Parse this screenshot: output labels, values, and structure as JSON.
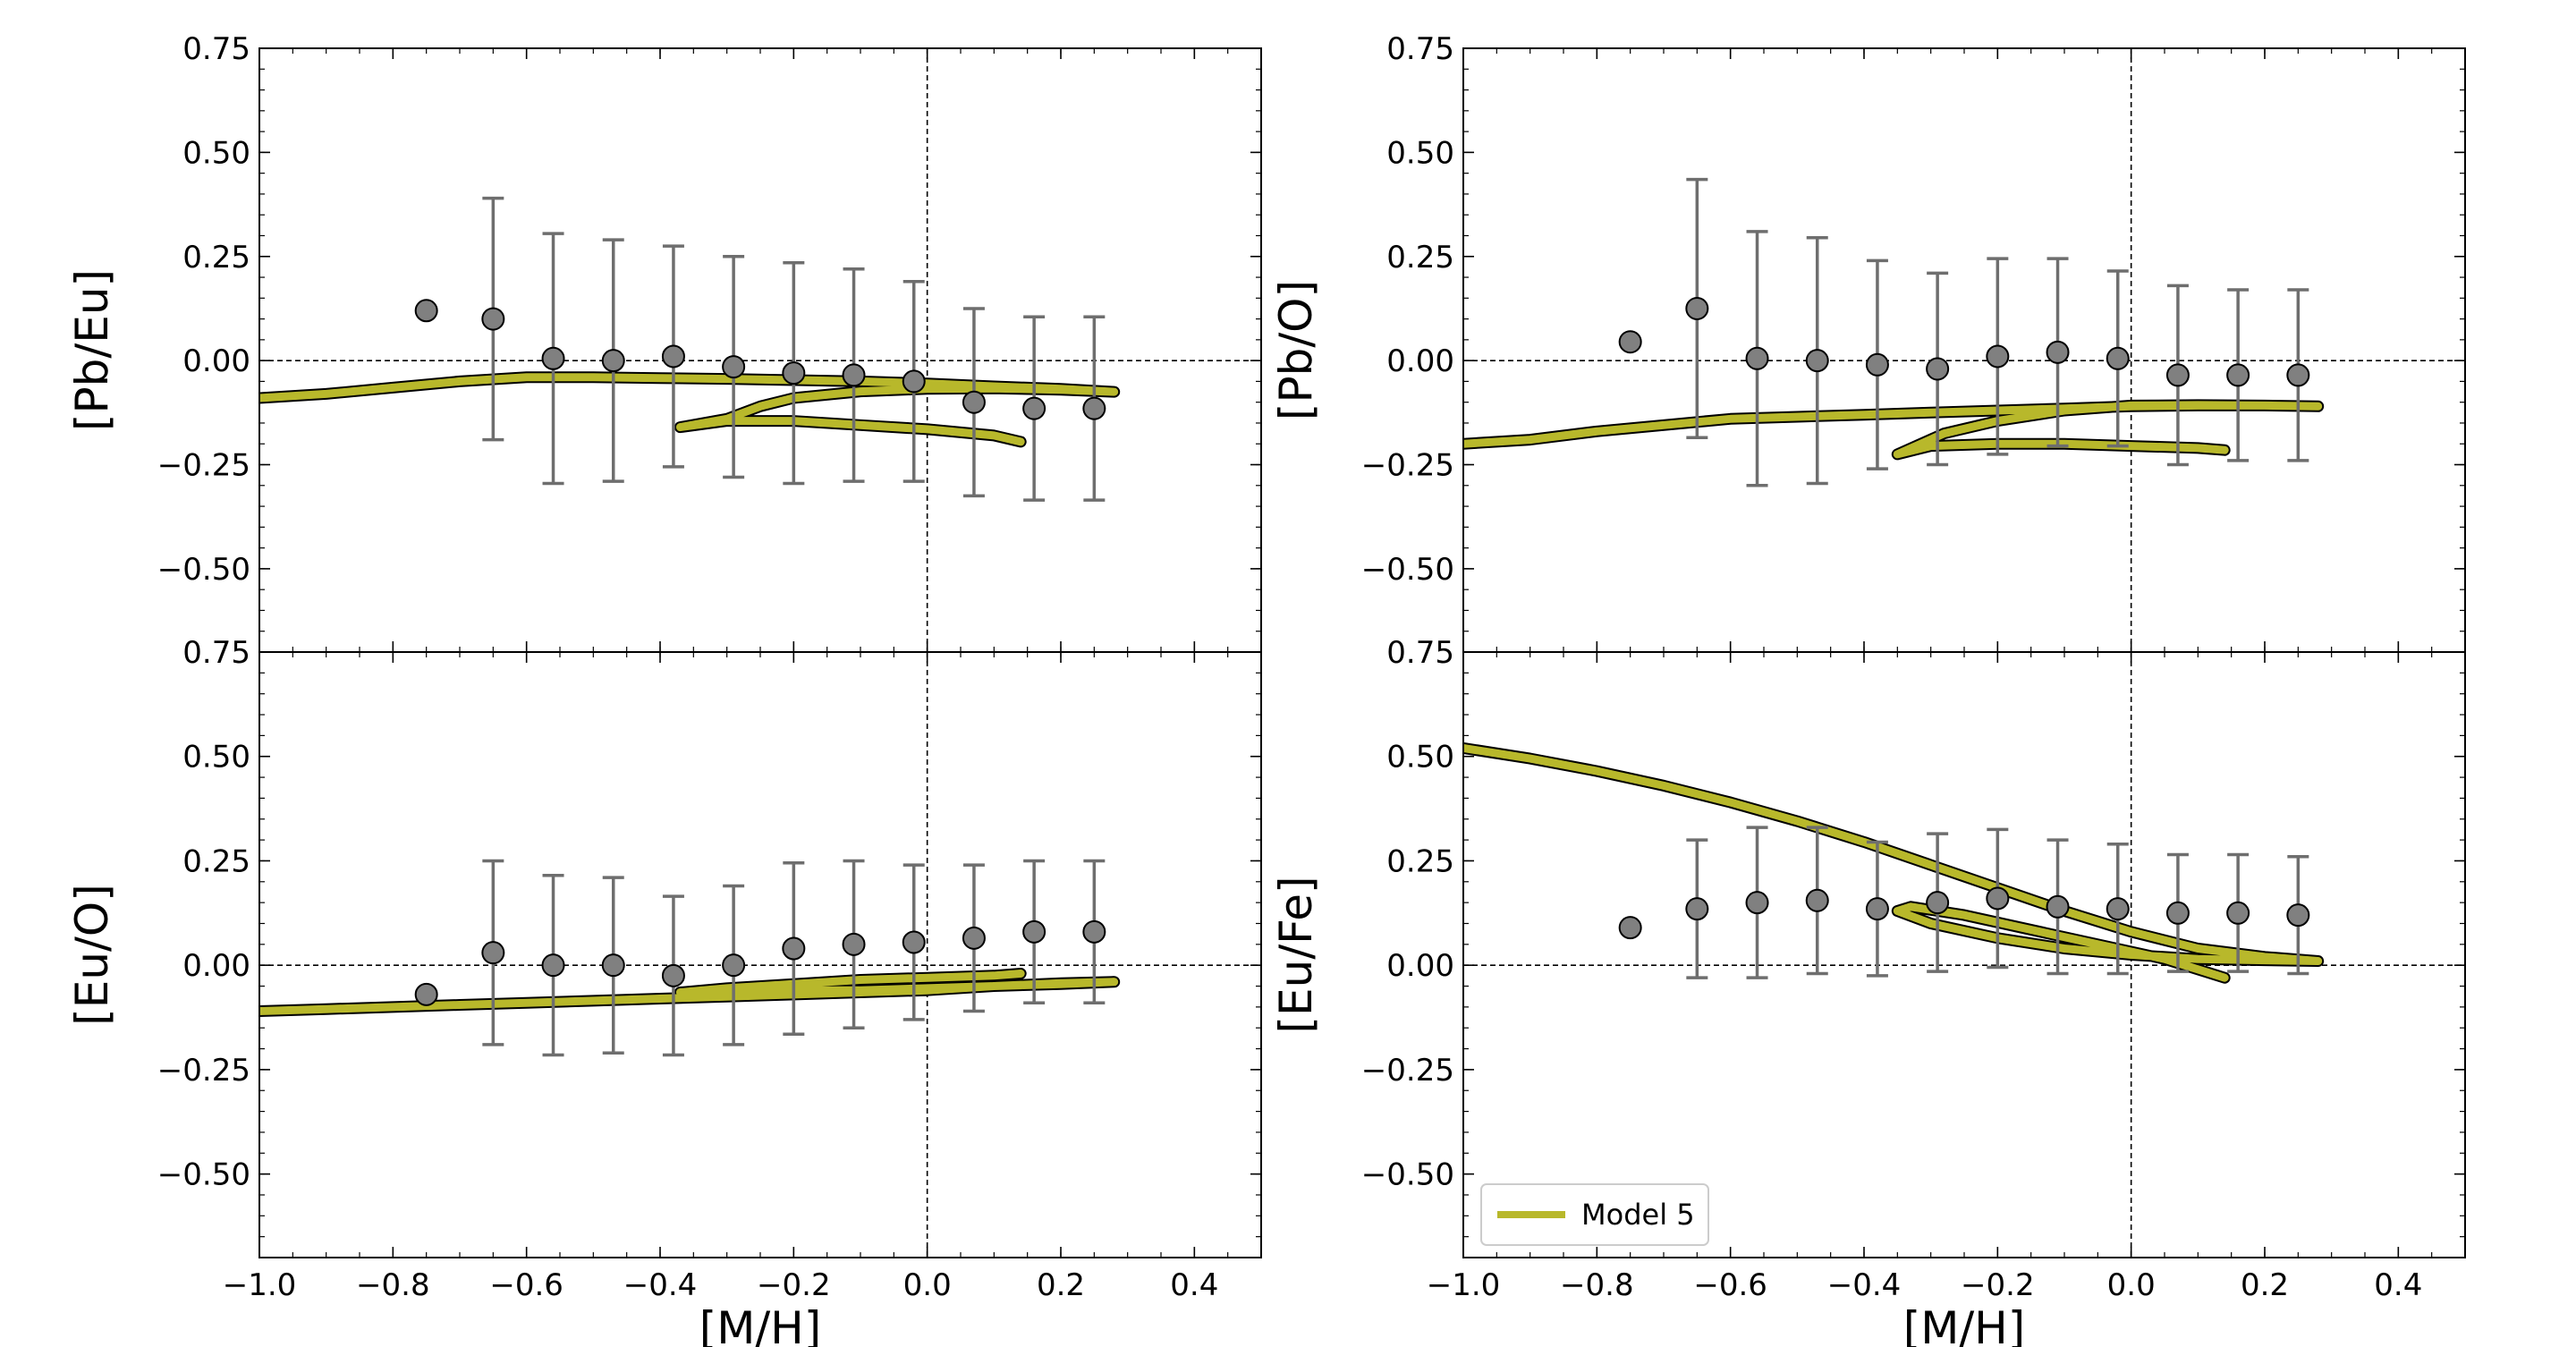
{
  "figure": {
    "colors": {
      "model": "#b8b82b",
      "model_edge": "#000000",
      "point_fill": "#808080",
      "errorbar": "#6e6e6e",
      "refline": "#000000"
    }
  },
  "chart_data": [
    {
      "id": "panel-pb-eu",
      "type": "scatter",
      "ylabel": "[Pb/Eu]",
      "xlabel": "",
      "xlim": [
        -1.0,
        0.5
      ],
      "ylim": [
        -0.7,
        0.75
      ],
      "xticks": [
        -1.0,
        -0.8,
        -0.6,
        -0.4,
        -0.2,
        0.0,
        0.2,
        0.4
      ],
      "xtick_labels": [],
      "yticks": [
        -0.5,
        -0.25,
        0.0,
        0.25,
        0.5,
        0.75
      ],
      "ytick_labels": [
        "−0.50",
        "−0.25",
        "0.00",
        "0.25",
        "0.50",
        "0.75"
      ],
      "observations": {
        "x": [
          -0.75,
          -0.65,
          -0.56,
          -0.47,
          -0.38,
          -0.29,
          -0.2,
          -0.11,
          -0.02,
          0.07,
          0.16,
          0.25
        ],
        "y": [
          0.12,
          0.1,
          0.005,
          0.0,
          0.01,
          -0.015,
          -0.03,
          -0.035,
          -0.05,
          -0.1,
          -0.115,
          -0.115
        ],
        "yerr": [
          null,
          0.29,
          0.3,
          0.29,
          0.265,
          0.265,
          0.265,
          0.255,
          0.24,
          0.225,
          0.22,
          0.22
        ]
      },
      "series": [
        {
          "name": "Model 5",
          "x": [
            -1.0,
            -0.9,
            -0.8,
            -0.7,
            -0.6,
            -0.5,
            -0.4,
            -0.3,
            -0.2,
            -0.1,
            0.0,
            0.1,
            0.2,
            0.28,
            0.2,
            0.1,
            0.0,
            -0.1,
            -0.2,
            -0.25,
            -0.3,
            -0.37,
            -0.3,
            -0.2,
            -0.1,
            0.0,
            0.1,
            0.14
          ],
          "y": [
            -0.09,
            -0.08,
            -0.065,
            -0.05,
            -0.04,
            -0.04,
            -0.042,
            -0.044,
            -0.047,
            -0.05,
            -0.055,
            -0.062,
            -0.068,
            -0.075,
            -0.07,
            -0.067,
            -0.068,
            -0.074,
            -0.09,
            -0.11,
            -0.14,
            -0.16,
            -0.145,
            -0.145,
            -0.155,
            -0.165,
            -0.18,
            -0.195
          ]
        }
      ]
    },
    {
      "id": "panel-pb-o",
      "type": "scatter",
      "ylabel": "[Pb/O]",
      "xlabel": "",
      "xlim": [
        -1.0,
        0.5
      ],
      "ylim": [
        -0.7,
        0.75
      ],
      "xticks": [
        -1.0,
        -0.8,
        -0.6,
        -0.4,
        -0.2,
        0.0,
        0.2,
        0.4
      ],
      "xtick_labels": [],
      "yticks": [
        -0.5,
        -0.25,
        0.0,
        0.25,
        0.5,
        0.75
      ],
      "ytick_labels": [
        "−0.50",
        "−0.25",
        "0.00",
        "0.25",
        "0.50",
        "0.75"
      ],
      "observations": {
        "x": [
          -0.75,
          -0.65,
          -0.56,
          -0.47,
          -0.38,
          -0.29,
          -0.2,
          -0.11,
          -0.02,
          0.07,
          0.16,
          0.25
        ],
        "y": [
          0.045,
          0.125,
          0.005,
          0.0,
          -0.01,
          -0.02,
          0.01,
          0.02,
          0.005,
          -0.035,
          -0.035,
          -0.035
        ],
        "yerr": [
          null,
          0.31,
          0.305,
          0.295,
          0.25,
          0.23,
          0.235,
          0.225,
          0.21,
          0.215,
          0.205,
          0.205
        ]
      },
      "series": [
        {
          "name": "Model 5",
          "x": [
            -1.0,
            -0.9,
            -0.8,
            -0.7,
            -0.6,
            -0.5,
            -0.4,
            -0.3,
            -0.2,
            -0.1,
            0.0,
            0.1,
            0.2,
            0.28,
            0.2,
            0.1,
            0.0,
            -0.1,
            -0.2,
            -0.28,
            -0.35,
            -0.3,
            -0.2,
            -0.1,
            0.0,
            0.1,
            0.14
          ],
          "y": [
            -0.2,
            -0.19,
            -0.17,
            -0.155,
            -0.14,
            -0.135,
            -0.13,
            -0.125,
            -0.12,
            -0.115,
            -0.11,
            -0.108,
            -0.108,
            -0.11,
            -0.108,
            -0.107,
            -0.108,
            -0.12,
            -0.145,
            -0.175,
            -0.225,
            -0.205,
            -0.2,
            -0.2,
            -0.205,
            -0.21,
            -0.215
          ]
        }
      ]
    },
    {
      "id": "panel-eu-o",
      "type": "scatter",
      "ylabel": "[Eu/O]",
      "xlabel": "[M/H]",
      "xlim": [
        -1.0,
        0.5
      ],
      "ylim": [
        -0.7,
        0.75
      ],
      "xticks": [
        -1.0,
        -0.8,
        -0.6,
        -0.4,
        -0.2,
        0.0,
        0.2,
        0.4
      ],
      "xtick_labels": [
        "−1.0",
        "−0.8",
        "−0.6",
        "−0.4",
        "−0.2",
        "0.0",
        "0.2",
        "0.4"
      ],
      "yticks": [
        -0.5,
        -0.25,
        0.0,
        0.25,
        0.5,
        0.75
      ],
      "ytick_labels": [
        "−0.50",
        "−0.25",
        "0.00",
        "0.25",
        "0.50",
        "0.75"
      ],
      "observations": {
        "x": [
          -0.75,
          -0.65,
          -0.56,
          -0.47,
          -0.38,
          -0.29,
          -0.2,
          -0.11,
          -0.02,
          0.07,
          0.16,
          0.25
        ],
        "y": [
          -0.07,
          0.03,
          0.0,
          0.0,
          -0.025,
          0.0,
          0.04,
          0.05,
          0.055,
          0.065,
          0.08,
          0.08
        ],
        "yerr": [
          null,
          0.22,
          0.215,
          0.21,
          0.19,
          0.19,
          0.205,
          0.2,
          0.185,
          0.175,
          0.17,
          0.17
        ]
      },
      "series": [
        {
          "name": "Model 5",
          "x": [
            -1.0,
            -0.9,
            -0.8,
            -0.7,
            -0.6,
            -0.5,
            -0.4,
            -0.3,
            -0.2,
            -0.1,
            0.0,
            0.1,
            0.2,
            0.28,
            0.2,
            0.1,
            0.0,
            -0.1,
            -0.2,
            -0.3,
            -0.37,
            -0.3,
            -0.2,
            -0.1,
            0.0,
            0.1,
            0.14
          ],
          "y": [
            -0.11,
            -0.105,
            -0.1,
            -0.095,
            -0.09,
            -0.085,
            -0.08,
            -0.075,
            -0.07,
            -0.065,
            -0.06,
            -0.05,
            -0.045,
            -0.04,
            -0.043,
            -0.05,
            -0.055,
            -0.06,
            -0.06,
            -0.065,
            -0.065,
            -0.055,
            -0.045,
            -0.035,
            -0.03,
            -0.025,
            -0.02
          ]
        }
      ]
    },
    {
      "id": "panel-eu-fe",
      "type": "scatter",
      "ylabel": "[Eu/Fe]",
      "xlabel": "[M/H]",
      "xlim": [
        -1.0,
        0.5
      ],
      "ylim": [
        -0.7,
        0.75
      ],
      "xticks": [
        -1.0,
        -0.8,
        -0.6,
        -0.4,
        -0.2,
        0.0,
        0.2,
        0.4
      ],
      "xtick_labels": [
        "−1.0",
        "−0.8",
        "−0.6",
        "−0.4",
        "−0.2",
        "0.0",
        "0.2",
        "0.4"
      ],
      "yticks": [
        -0.5,
        -0.25,
        0.0,
        0.25,
        0.5,
        0.75
      ],
      "ytick_labels": [
        "−0.50",
        "−0.25",
        "0.00",
        "0.25",
        "0.50",
        "0.75"
      ],
      "legend": {
        "label": "Model 5",
        "placement": "lower-left"
      },
      "observations": {
        "x": [
          -0.75,
          -0.65,
          -0.56,
          -0.47,
          -0.38,
          -0.29,
          -0.2,
          -0.11,
          -0.02,
          0.07,
          0.16,
          0.25
        ],
        "y": [
          0.09,
          0.135,
          0.15,
          0.155,
          0.135,
          0.15,
          0.16,
          0.14,
          0.135,
          0.125,
          0.125,
          0.12
        ],
        "yerr": [
          null,
          0.165,
          0.18,
          0.175,
          0.16,
          0.165,
          0.165,
          0.16,
          0.155,
          0.14,
          0.14,
          0.14
        ]
      },
      "series": [
        {
          "name": "Model 5",
          "x": [
            -1.0,
            -0.9,
            -0.8,
            -0.7,
            -0.6,
            -0.5,
            -0.4,
            -0.3,
            -0.2,
            -0.1,
            0.0,
            0.1,
            0.2,
            0.28,
            0.2,
            0.1,
            0.0,
            -0.1,
            -0.2,
            -0.3,
            -0.35,
            -0.33,
            -0.25,
            -0.15,
            -0.05,
            0.05,
            0.14
          ],
          "y": [
            0.52,
            0.495,
            0.465,
            0.43,
            0.39,
            0.345,
            0.295,
            0.24,
            0.185,
            0.13,
            0.08,
            0.04,
            0.02,
            0.01,
            0.012,
            0.015,
            0.025,
            0.04,
            0.065,
            0.1,
            0.13,
            0.14,
            0.12,
            0.085,
            0.05,
            0.015,
            -0.03
          ]
        }
      ]
    }
  ]
}
